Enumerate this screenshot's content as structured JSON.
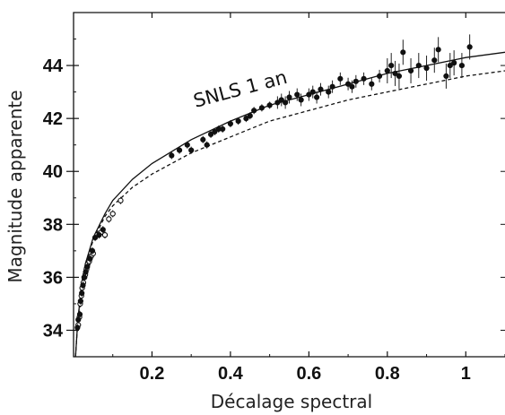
{
  "chart_data": {
    "type": "scatter",
    "title": "",
    "xlabel": "Décalage spectral",
    "ylabel": "Magnitude apparente",
    "xlim": [
      0,
      1.1
    ],
    "ylim": [
      33,
      46
    ],
    "xticks": [
      0.2,
      0.4,
      0.6,
      0.8,
      1
    ],
    "xtick_labels": [
      "0.2",
      "0.4",
      "0.6",
      "0.8",
      "1"
    ],
    "yticks": [
      34,
      36,
      38,
      40,
      42,
      44
    ],
    "ytick_labels": [
      "34",
      "36",
      "38",
      "40",
      "42",
      "44"
    ],
    "grid": false,
    "annotation": "SNLS 1 an",
    "series": [
      {
        "marker": "open-circle",
        "points": [
          [
            0.012,
            34.2
          ],
          [
            0.015,
            34.5
          ],
          [
            0.017,
            35.0
          ],
          [
            0.02,
            35.3
          ],
          [
            0.022,
            35.6
          ],
          [
            0.025,
            35.8
          ],
          [
            0.028,
            36.0
          ],
          [
            0.03,
            36.1
          ],
          [
            0.033,
            36.3
          ],
          [
            0.036,
            36.5
          ],
          [
            0.04,
            36.6
          ],
          [
            0.045,
            36.8
          ],
          [
            0.05,
            36.9
          ],
          [
            0.06,
            37.6
          ],
          [
            0.07,
            37.7
          ],
          [
            0.08,
            37.6
          ],
          [
            0.09,
            38.2
          ],
          [
            0.1,
            38.4
          ],
          [
            0.12,
            38.9
          ]
        ]
      },
      {
        "marker": "filled-circle",
        "points": [
          [
            0.01,
            34.1
          ],
          [
            0.012,
            34.4
          ],
          [
            0.016,
            34.6
          ],
          [
            0.018,
            35.1
          ],
          [
            0.021,
            35.4
          ],
          [
            0.024,
            35.7
          ],
          [
            0.027,
            36.0
          ],
          [
            0.031,
            36.2
          ],
          [
            0.035,
            36.4
          ],
          [
            0.042,
            36.7
          ],
          [
            0.048,
            37.0
          ],
          [
            0.055,
            37.5
          ],
          [
            0.065,
            37.6
          ],
          [
            0.075,
            37.8
          ],
          [
            0.25,
            40.6
          ],
          [
            0.27,
            40.8
          ],
          [
            0.29,
            41.0
          ],
          [
            0.3,
            40.8
          ],
          [
            0.33,
            41.2
          ],
          [
            0.34,
            41.0
          ],
          [
            0.35,
            41.4
          ],
          [
            0.36,
            41.5
          ],
          [
            0.37,
            41.6
          ],
          [
            0.38,
            41.6
          ],
          [
            0.4,
            41.8
          ],
          [
            0.42,
            41.9
          ],
          [
            0.44,
            42.0
          ],
          [
            0.45,
            42.1
          ],
          [
            0.46,
            42.3
          ],
          [
            0.48,
            42.4
          ],
          [
            0.5,
            42.5
          ],
          [
            0.52,
            42.6
          ],
          [
            0.53,
            42.7
          ],
          [
            0.54,
            42.6
          ],
          [
            0.55,
            42.8
          ],
          [
            0.57,
            42.9
          ],
          [
            0.58,
            42.7
          ],
          [
            0.6,
            42.9
          ],
          [
            0.61,
            43.0
          ],
          [
            0.62,
            42.8
          ],
          [
            0.63,
            43.1
          ],
          [
            0.65,
            43.0
          ],
          [
            0.66,
            43.2
          ],
          [
            0.68,
            43.5
          ],
          [
            0.7,
            43.3
          ],
          [
            0.71,
            43.2
          ],
          [
            0.72,
            43.4
          ],
          [
            0.74,
            43.5
          ],
          [
            0.76,
            43.3
          ],
          [
            0.78,
            43.6
          ],
          [
            0.8,
            43.8
          ],
          [
            0.81,
            44.0
          ],
          [
            0.82,
            43.7
          ],
          [
            0.83,
            43.6
          ],
          [
            0.84,
            44.5
          ],
          [
            0.86,
            43.8
          ],
          [
            0.88,
            44.0
          ],
          [
            0.9,
            43.9
          ],
          [
            0.92,
            44.2
          ],
          [
            0.93,
            44.6
          ],
          [
            0.95,
            43.6
          ],
          [
            0.96,
            44.0
          ],
          [
            0.97,
            44.1
          ],
          [
            0.99,
            44.0
          ],
          [
            1.01,
            44.7
          ]
        ]
      },
      {
        "style": "solid",
        "points": [
          [
            0.005,
            33.0
          ],
          [
            0.01,
            34.2
          ],
          [
            0.02,
            35.7
          ],
          [
            0.03,
            36.5
          ],
          [
            0.05,
            37.5
          ],
          [
            0.08,
            38.4
          ],
          [
            0.1,
            38.9
          ],
          [
            0.15,
            39.7
          ],
          [
            0.2,
            40.3
          ],
          [
            0.3,
            41.2
          ],
          [
            0.4,
            41.9
          ],
          [
            0.5,
            42.5
          ],
          [
            0.6,
            42.9
          ],
          [
            0.7,
            43.3
          ],
          [
            0.8,
            43.7
          ],
          [
            0.9,
            44.0
          ],
          [
            1.0,
            44.3
          ],
          [
            1.1,
            44.5
          ]
        ]
      },
      {
        "style": "dashed",
        "points": [
          [
            0.005,
            33.0
          ],
          [
            0.01,
            34.2
          ],
          [
            0.02,
            35.7
          ],
          [
            0.03,
            36.5
          ],
          [
            0.05,
            37.4
          ],
          [
            0.08,
            38.3
          ],
          [
            0.1,
            38.7
          ],
          [
            0.15,
            39.4
          ],
          [
            0.2,
            39.9
          ],
          [
            0.3,
            40.7
          ],
          [
            0.4,
            41.3
          ],
          [
            0.5,
            41.9
          ],
          [
            0.6,
            42.3
          ],
          [
            0.7,
            42.7
          ],
          [
            0.8,
            43.0
          ],
          [
            0.9,
            43.3
          ],
          [
            1.0,
            43.6
          ],
          [
            1.1,
            43.8
          ]
        ]
      }
    ]
  }
}
